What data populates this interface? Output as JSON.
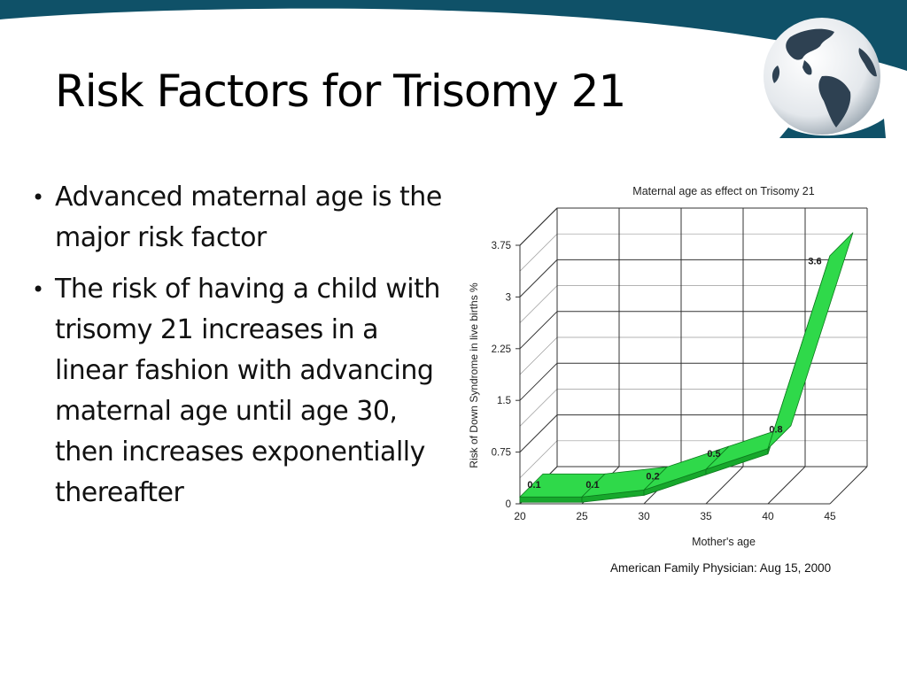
{
  "slide": {
    "title": "Risk Factors for Trisomy 21",
    "bullets": [
      "Advanced maternal age is the major risk factor",
      "The risk of having a child with trisomy 21 increases in a linear fashion with advancing maternal age until age 30, then increases exponentially thereafter"
    ],
    "source": "American Family Physician: Aug 15, 2000"
  },
  "colors": {
    "band": "#0f5168",
    "ribbon_top": "#2fd94a",
    "ribbon_front": "#17a82c",
    "ribbon_dark": "#0d7a1e",
    "grid": "#333333"
  },
  "chart_data": {
    "type": "line",
    "title": "Maternal age as effect on Trisomy 21",
    "xlabel": "Mother's age",
    "ylabel": "Risk of Down Syndrome in live births %",
    "x": [
      20,
      25,
      30,
      35,
      40,
      45
    ],
    "yticks": [
      0,
      0.75,
      1.5,
      2.25,
      3,
      3.75
    ],
    "ylim": [
      0,
      3.75
    ],
    "xlim": [
      20,
      45
    ],
    "style": "3d-ribbon",
    "grid": true,
    "series": [
      {
        "x": [
          20,
          25,
          30,
          35,
          40,
          45
        ],
        "values": [
          0.1,
          0.1,
          0.2,
          0.5,
          0.8,
          3.6
        ],
        "labels": [
          "0.1",
          "0.1",
          "0.2",
          "0.5",
          "0.8",
          "3.6"
        ]
      }
    ]
  }
}
